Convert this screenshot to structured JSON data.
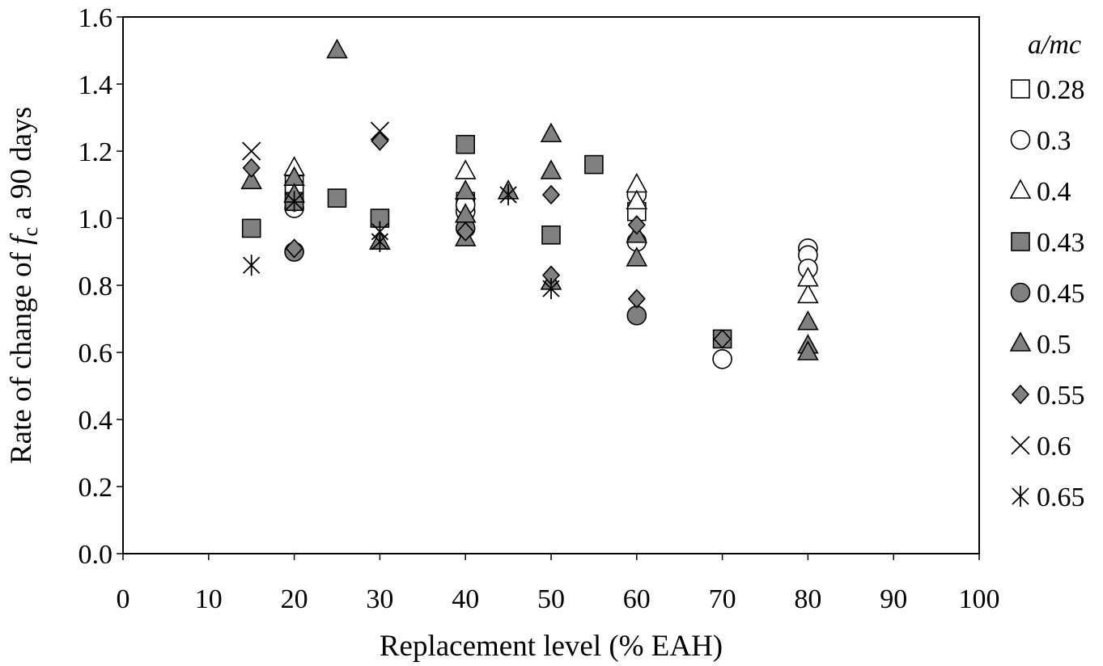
{
  "chart_data": {
    "type": "scatter",
    "title": "",
    "xlabel": "Replacement level (% EAH)",
    "ylabel": {
      "prefix": "Rate of change of ",
      "symbol": "f",
      "subscript": "c",
      "suffix": " a 90 days"
    },
    "xlim": [
      0,
      100
    ],
    "ylim": [
      0,
      1.6
    ],
    "xticks": [
      0,
      10,
      20,
      30,
      40,
      50,
      60,
      70,
      80,
      90,
      100
    ],
    "xtick_labels": [
      "0",
      "10",
      "20",
      "30",
      "40",
      "50",
      "60",
      "70",
      "80",
      "90",
      "100"
    ],
    "yticks": [
      0,
      0.2,
      0.4,
      0.6,
      0.8,
      1.0,
      1.2,
      1.4,
      1.6
    ],
    "ytick_labels": [
      "0.0",
      "0.2",
      "0.4",
      "0.6",
      "0.8",
      "1.0",
      "1.2",
      "1.4",
      "1.6"
    ],
    "grid": false,
    "legend_title": "a/mc",
    "legend_position": "right",
    "series": [
      {
        "name": "0.28",
        "marker": "square",
        "fill": "#ffffff",
        "points": [
          [
            20,
            1.07
          ],
          [
            20,
            1.1
          ],
          [
            40,
            1.05
          ],
          [
            60,
            1.02
          ]
        ]
      },
      {
        "name": "0.3",
        "marker": "circle",
        "fill": "#ffffff",
        "points": [
          [
            20,
            1.03
          ],
          [
            20,
            1.05
          ],
          [
            40,
            1.02
          ],
          [
            40,
            1.04
          ],
          [
            60,
            0.93
          ],
          [
            60,
            1.07
          ],
          [
            70,
            0.58
          ],
          [
            80,
            0.91
          ],
          [
            80,
            0.89
          ],
          [
            80,
            0.85
          ]
        ]
      },
      {
        "name": "0.4",
        "marker": "triangle",
        "fill": "#ffffff",
        "points": [
          [
            20,
            1.15
          ],
          [
            40,
            1.14
          ],
          [
            60,
            1.1
          ],
          [
            60,
            1.05
          ],
          [
            80,
            0.77
          ],
          [
            80,
            0.82
          ]
        ]
      },
      {
        "name": "0.43",
        "marker": "square",
        "fill": "#808080",
        "points": [
          [
            15,
            0.97
          ],
          [
            20,
            1.05
          ],
          [
            25,
            1.06
          ],
          [
            30,
            1.0
          ],
          [
            40,
            1.22
          ],
          [
            50,
            0.95
          ],
          [
            55,
            1.16
          ],
          [
            70,
            0.64
          ]
        ]
      },
      {
        "name": "0.45",
        "marker": "circle",
        "fill": "#808080",
        "points": [
          [
            20,
            0.9
          ],
          [
            40,
            0.97
          ],
          [
            60,
            0.71
          ]
        ]
      },
      {
        "name": "0.5",
        "marker": "triangle",
        "fill": "#808080",
        "points": [
          [
            15,
            1.11
          ],
          [
            20,
            1.12
          ],
          [
            20,
            1.07
          ],
          [
            25,
            1.5
          ],
          [
            30,
            0.93
          ],
          [
            40,
            1.08
          ],
          [
            40,
            1.01
          ],
          [
            40,
            0.94
          ],
          [
            45,
            1.08
          ],
          [
            50,
            1.25
          ],
          [
            50,
            1.14
          ],
          [
            50,
            0.81
          ],
          [
            60,
            0.95
          ],
          [
            60,
            0.88
          ],
          [
            80,
            0.69
          ],
          [
            80,
            0.62
          ],
          [
            80,
            0.6
          ]
        ]
      },
      {
        "name": "0.55",
        "marker": "diamond",
        "fill": "#808080",
        "points": [
          [
            15,
            1.15
          ],
          [
            20,
            0.91
          ],
          [
            30,
            1.23
          ],
          [
            40,
            0.96
          ],
          [
            50,
            1.07
          ],
          [
            50,
            0.83
          ],
          [
            60,
            0.98
          ],
          [
            60,
            0.76
          ],
          [
            70,
            0.64
          ]
        ]
      },
      {
        "name": "0.6",
        "marker": "x",
        "fill": "none",
        "points": [
          [
            15,
            1.2
          ],
          [
            30,
            1.26
          ]
        ]
      },
      {
        "name": "0.65",
        "marker": "asterisk",
        "fill": "none",
        "points": [
          [
            15,
            0.86
          ],
          [
            20,
            1.05
          ],
          [
            30,
            0.96
          ],
          [
            30,
            0.93
          ],
          [
            45,
            1.07
          ],
          [
            50,
            0.79
          ]
        ]
      }
    ]
  }
}
